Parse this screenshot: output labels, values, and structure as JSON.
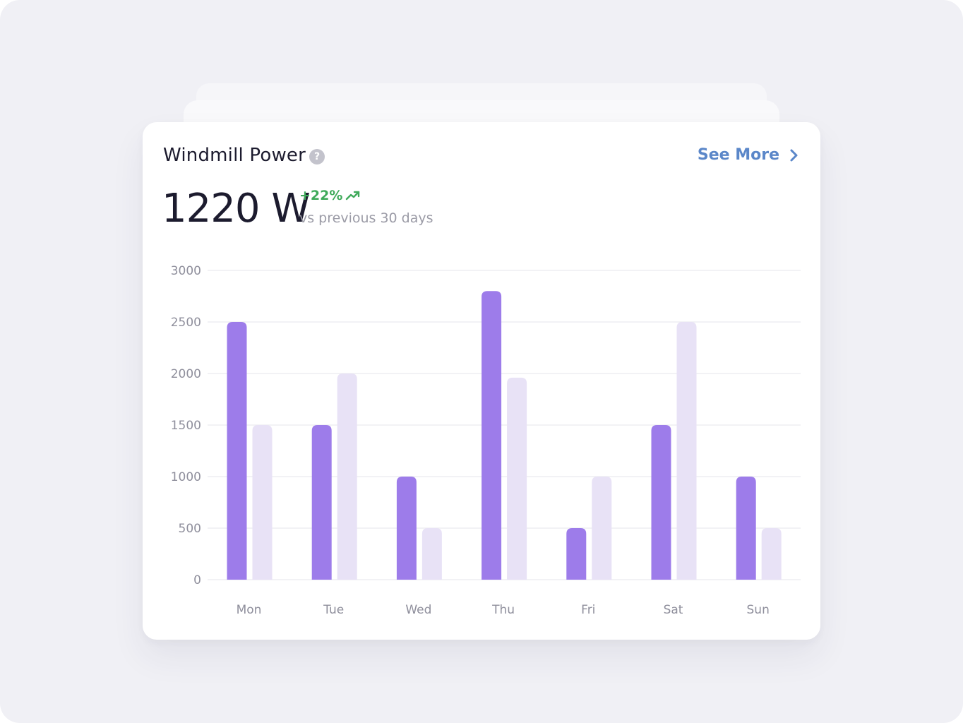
{
  "header": {
    "title": "Windmill Power",
    "help_icon": "question-mark-icon",
    "see_more_label": "See More",
    "see_more_icon": "chevron-right-icon"
  },
  "summary": {
    "value": "1220 W",
    "change": "+22%",
    "change_icon": "trend-up-icon",
    "caption": "vs previous 30 days"
  },
  "colors": {
    "primary_bar": "#9d7cea",
    "secondary_bar": "#e8e2f6",
    "positive": "#3faa5a",
    "link": "#5b87c9"
  },
  "chart_data": {
    "type": "bar",
    "categories": [
      "Mon",
      "Tue",
      "Wed",
      "Thu",
      "Fri",
      "Sat",
      "Sun"
    ],
    "series": [
      {
        "values": [
          2500,
          1500,
          1000,
          2800,
          500,
          1500,
          1000
        ]
      },
      {
        "values": [
          1500,
          2000,
          500,
          1960,
          1000,
          2500,
          500
        ]
      }
    ],
    "yticks": [
      "3000",
      "2500",
      "2000",
      "1500",
      "1000",
      "500",
      "0"
    ],
    "ylim": [
      0,
      3000
    ],
    "grid": true,
    "legend": "none",
    "xlabel": "",
    "ylabel": ""
  }
}
